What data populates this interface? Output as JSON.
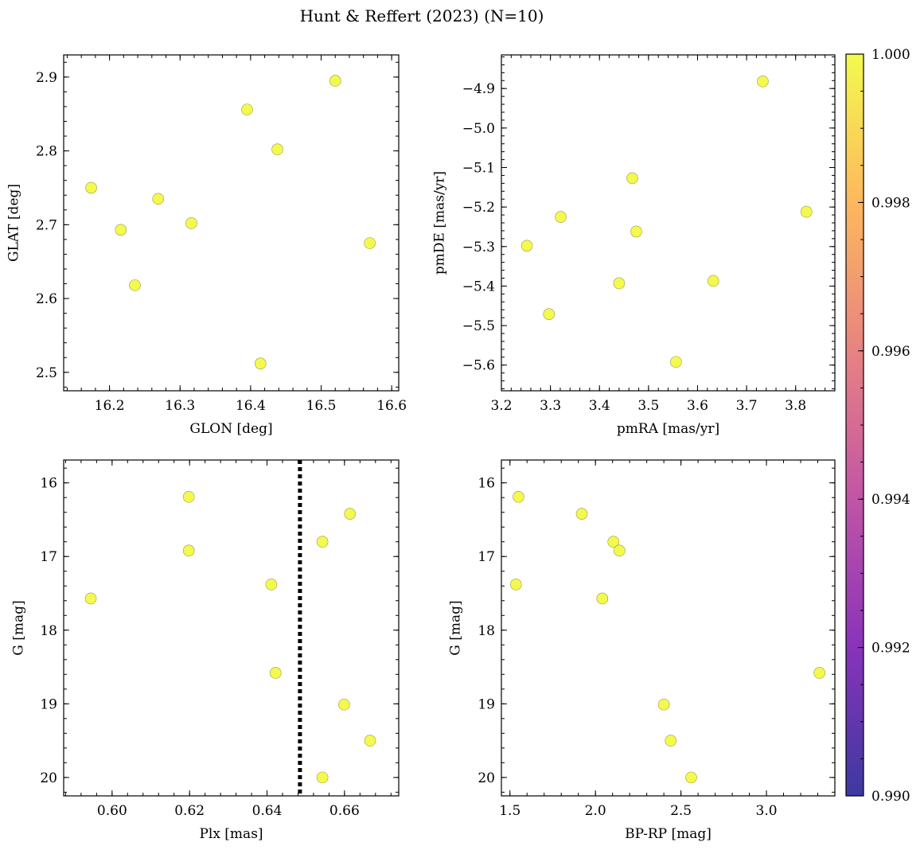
{
  "title": "Hunt & Reffert (2023) (N=10)",
  "colorbar": {
    "min": 0.99,
    "max": 1.0,
    "ticks": [
      0.99,
      0.992,
      0.994,
      0.996,
      0.998,
      1.0
    ],
    "tick_labels": [
      "0.990",
      "0.992",
      "0.994",
      "0.996",
      "0.998",
      "1.000"
    ],
    "colormap": "plasma",
    "colormap_stops": [
      "#0d0887",
      "#6a00a8",
      "#b12a90",
      "#e16462",
      "#fca636",
      "#f0f921"
    ]
  },
  "chart_data": [
    {
      "type": "scatter",
      "xlabel": "GLON [deg]",
      "ylabel": "GLAT [deg]",
      "xlim": [
        16.135,
        16.61
      ],
      "ylim": [
        2.475,
        2.93
      ],
      "xticks": [
        16.2,
        16.3,
        16.4,
        16.5,
        16.6
      ],
      "xtick_labels": [
        "16.2",
        "16.3",
        "16.4",
        "16.5",
        "16.6"
      ],
      "yticks": [
        2.5,
        2.6,
        2.7,
        2.8,
        2.9
      ],
      "ytick_labels": [
        "2.5",
        "2.6",
        "2.7",
        "2.8",
        "2.9"
      ],
      "y_inverted": false,
      "x": [
        16.174,
        16.216,
        16.236,
        16.269,
        16.316,
        16.395,
        16.438,
        16.414,
        16.52,
        16.569
      ],
      "y": [
        2.75,
        2.693,
        2.618,
        2.735,
        2.702,
        2.856,
        2.802,
        2.512,
        2.895,
        2.675
      ],
      "color_values": [
        1,
        1,
        1,
        1,
        1,
        1,
        1,
        1,
        1,
        1
      ]
    },
    {
      "type": "scatter",
      "xlabel": "pmRA [mas/yr]",
      "ylabel": "pmDE [mas/yr]",
      "xlim": [
        3.2,
        3.88
      ],
      "ylim": [
        -5.665,
        -4.815
      ],
      "xticks": [
        3.2,
        3.3,
        3.4,
        3.5,
        3.6,
        3.7,
        3.8
      ],
      "xtick_labels": [
        "3.2",
        "3.3",
        "3.4",
        "3.5",
        "3.6",
        "3.7",
        "3.8"
      ],
      "yticks": [
        -5.6,
        -5.5,
        -5.4,
        -5.3,
        -5.2,
        -5.1,
        -5.0,
        -4.9
      ],
      "ytick_labels": [
        "−5.6",
        "−5.5",
        "−5.4",
        "−5.3",
        "−5.2",
        "−5.1",
        "−5.0",
        "−4.9"
      ],
      "y_inverted": false,
      "x": [
        3.252,
        3.297,
        3.321,
        3.44,
        3.467,
        3.475,
        3.556,
        3.632,
        3.733,
        3.822
      ],
      "y": [
        -5.298,
        -5.471,
        -5.225,
        -5.393,
        -5.127,
        -5.262,
        -5.592,
        -5.387,
        -4.882,
        -5.212
      ],
      "color_values": [
        1,
        1,
        1,
        1,
        1,
        1,
        1,
        1,
        1,
        1
      ]
    },
    {
      "type": "scatter",
      "xlabel": "Plx [mas]",
      "ylabel": "G [mag]",
      "xlim": [
        0.5875,
        0.674
      ],
      "ylim": [
        15.69,
        20.25
      ],
      "xticks": [
        0.6,
        0.62,
        0.64,
        0.66
      ],
      "xtick_labels": [
        "0.60",
        "0.62",
        "0.64",
        "0.66"
      ],
      "yticks": [
        16,
        17,
        18,
        19,
        20
      ],
      "ytick_labels": [
        "16",
        "17",
        "18",
        "19",
        "20"
      ],
      "y_inverted": true,
      "x": [
        0.5945,
        0.6198,
        0.6198,
        0.6411,
        0.6422,
        0.6543,
        0.6543,
        0.6599,
        0.6614,
        0.6666
      ],
      "y": [
        17.57,
        16.19,
        16.92,
        17.38,
        18.58,
        16.8,
        20.0,
        19.01,
        16.42,
        19.5
      ],
      "color_values": [
        1,
        1,
        1,
        1,
        1,
        1,
        1,
        1,
        1,
        1
      ],
      "vline": {
        "x": 0.6485,
        "style": "dotted"
      }
    },
    {
      "type": "scatter",
      "xlabel": "BP-RP [mag]",
      "ylabel": "G [mag]",
      "xlim": [
        1.45,
        3.4
      ],
      "ylim": [
        15.69,
        20.25
      ],
      "xticks": [
        1.5,
        2.0,
        2.5,
        3.0
      ],
      "xtick_labels": [
        "1.5",
        "2.0",
        "2.5",
        "3.0"
      ],
      "yticks": [
        16,
        17,
        18,
        19,
        20
      ],
      "ytick_labels": [
        "16",
        "17",
        "18",
        "19",
        "20"
      ],
      "y_inverted": true,
      "x": [
        1.535,
        1.55,
        1.92,
        2.04,
        2.105,
        2.14,
        2.4,
        2.44,
        2.56,
        3.31
      ],
      "y": [
        17.38,
        16.19,
        16.42,
        17.57,
        16.8,
        16.92,
        19.01,
        19.5,
        20.0,
        18.58
      ],
      "color_values": [
        1,
        1,
        1,
        1,
        1,
        1,
        1,
        1,
        1,
        1
      ]
    }
  ]
}
